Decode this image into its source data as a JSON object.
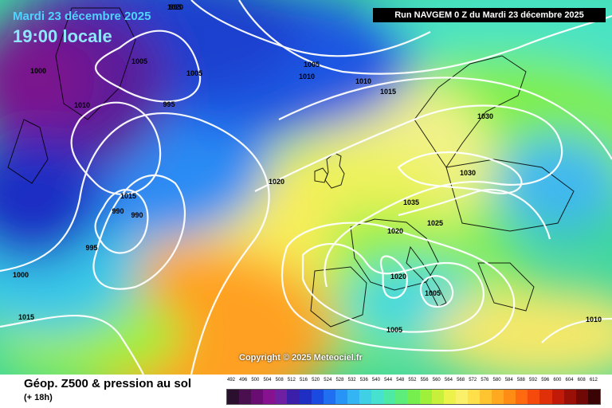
{
  "map": {
    "date_label": "Mardi 23 décembre 2025",
    "time_label": "19:00 locale",
    "run_info": "Run NAVGEM 0 Z du Mardi 23 décembre 2025",
    "copyright": "Copyright © 2025 Meteociel.fr",
    "isobar_labels": [
      "995",
      "1005",
      "1000",
      "1005",
      "1010",
      "1010",
      "995",
      "1005",
      "1010",
      "1015",
      "1020",
      "1030",
      "1030",
      "1035",
      "1025",
      "1020",
      "1015",
      "990",
      "990",
      "995",
      "1000",
      "1015",
      "1020",
      "1005",
      "1005",
      "1010",
      "1020"
    ]
  },
  "footer": {
    "product_title": "Géop. Z500 & pression au sol",
    "lead_time": "(+ 18h)",
    "legend_values": [
      "492",
      "496",
      "500",
      "504",
      "508",
      "512",
      "516",
      "520",
      "524",
      "528",
      "532",
      "536",
      "540",
      "544",
      "548",
      "552",
      "556",
      "560",
      "564",
      "568",
      "572",
      "576",
      "580",
      "584",
      "588",
      "592",
      "596",
      "600",
      "604",
      "608",
      "612"
    ],
    "legend_colors": [
      "#2a0f2f",
      "#4a0f4f",
      "#6a0d72",
      "#86128f",
      "#6f1fa2",
      "#3b1fa8",
      "#1f2fc4",
      "#1a4ae0",
      "#1f6ff0",
      "#2894f5",
      "#34b4f2",
      "#3fd0e6",
      "#46e2cf",
      "#4fe9a6",
      "#5ced7a",
      "#76ef4e",
      "#9ef03a",
      "#c8f03a",
      "#ecf24a",
      "#fbf06a",
      "#ffe04a",
      "#ffc430",
      "#ffa820",
      "#ff8c14",
      "#ff6a10",
      "#f54a0c",
      "#e0300a",
      "#c21a08",
      "#9a1006",
      "#700806",
      "#3a0404"
    ]
  }
}
